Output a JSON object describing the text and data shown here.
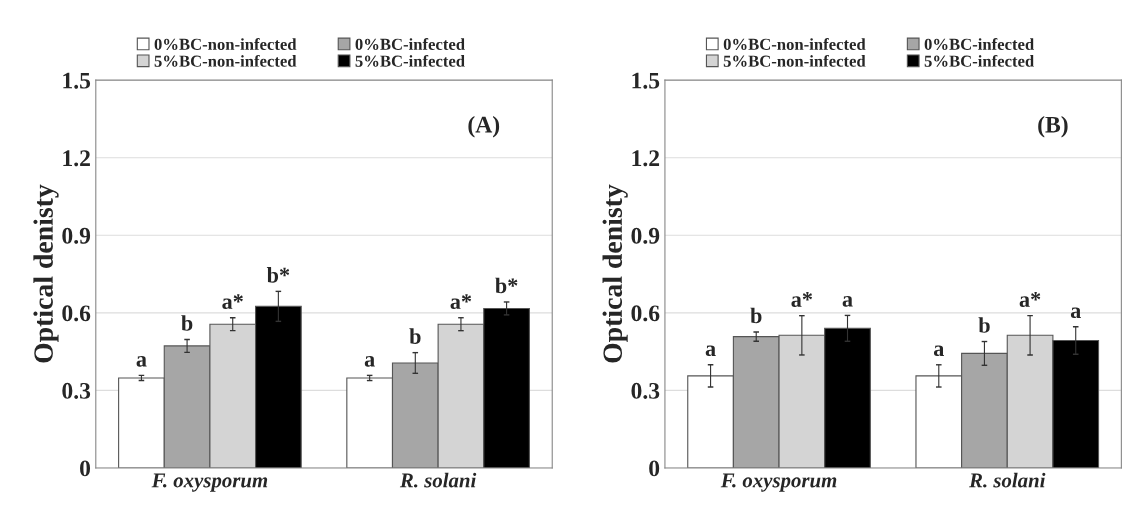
{
  "chart_data": [
    {
      "type": "bar",
      "ylabel": "Optical denisty",
      "categories": [
        "F. oxysporum",
        "R. solani"
      ],
      "ylim": [
        0,
        1.5
      ],
      "yticks": [
        0,
        0.3,
        0.6,
        0.9,
        1.2,
        1.5
      ],
      "grid": "y",
      "legend": "top",
      "series": [
        {
          "name": "0%BC-non-infected",
          "color": "#ffffff",
          "values": [
            0.348,
            0.348
          ],
          "errors": [
            0.01,
            0.01
          ]
        },
        {
          "name": "0%BC-infected",
          "color": "#a6a6a6",
          "values": [
            0.472,
            0.406
          ],
          "errors": [
            0.025,
            0.04
          ]
        },
        {
          "name": "5%BC-non-infected",
          "color": "#d4d4d4",
          "values": [
            0.556,
            0.556
          ],
          "errors": [
            0.025,
            0.025
          ]
        },
        {
          "name": "5%BC-infected",
          "color": "#000000",
          "values": [
            0.625,
            0.617
          ],
          "errors": [
            0.058,
            0.025
          ]
        }
      ],
      "annotations": [
        "(A)",
        "a",
        "b",
        "a*",
        "b*",
        "a",
        "b",
        "a*",
        "b*"
      ]
    },
    {
      "type": "bar",
      "ylabel": "Optical denisty",
      "categories": [
        "F. oxysporum",
        "R. solani"
      ],
      "ylim": [
        0,
        1.5
      ],
      "yticks": [
        0,
        0.3,
        0.6,
        0.9,
        1.2,
        1.5
      ],
      "grid": "y",
      "legend": "top",
      "series": [
        {
          "name": "0%BC-non-infected",
          "color": "#ffffff",
          "values": [
            0.356,
            0.356
          ],
          "errors": [
            0.043,
            0.043
          ]
        },
        {
          "name": "0%BC-infected",
          "color": "#a6a6a6",
          "values": [
            0.508,
            0.443
          ],
          "errors": [
            0.018,
            0.046
          ]
        },
        {
          "name": "5%BC-non-infected",
          "color": "#d4d4d4",
          "values": [
            0.513,
            0.513
          ],
          "errors": [
            0.076,
            0.076
          ]
        },
        {
          "name": "5%BC-infected",
          "color": "#000000",
          "values": [
            0.54,
            0.493
          ],
          "errors": [
            0.05,
            0.053
          ]
        }
      ],
      "annotations": [
        "(B)",
        "a",
        "b",
        "a*",
        "a",
        "a",
        "b",
        "a*",
        "a"
      ]
    }
  ]
}
